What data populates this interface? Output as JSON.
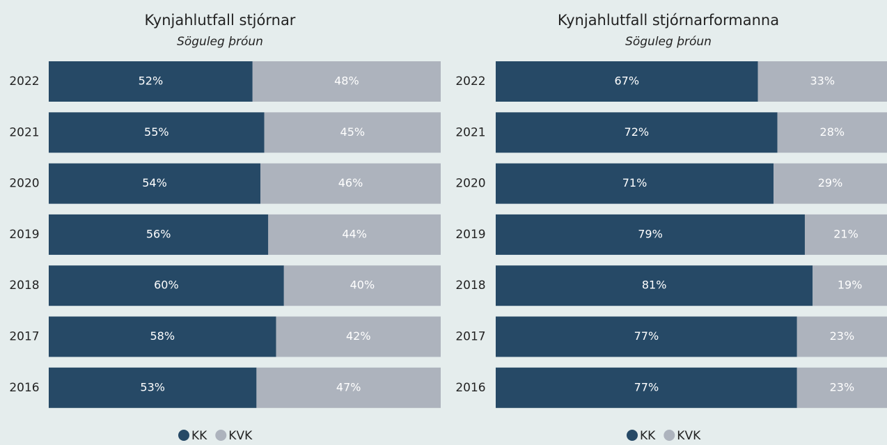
{
  "chart_data": [
    {
      "type": "stacked-bar-horizontal",
      "title": "Kynjahlutfall stjórnar",
      "subtitle": "Söguleg þróun",
      "categories": [
        "2022",
        "2021",
        "2020",
        "2019",
        "2018",
        "2017",
        "2016"
      ],
      "xlim": [
        0,
        100
      ],
      "series": [
        {
          "name": "KK",
          "color": "#264966",
          "values": [
            52,
            55,
            54,
            56,
            60,
            58,
            53
          ],
          "value_labels": [
            "52%",
            "55%",
            "54%",
            "56%",
            "60%",
            "58%",
            "53%"
          ]
        },
        {
          "name": "KVK",
          "color": "#adb3bd",
          "values": [
            48,
            45,
            46,
            44,
            40,
            42,
            47
          ],
          "value_labels": [
            "48%",
            "45%",
            "46%",
            "44%",
            "40%",
            "42%",
            "47%"
          ]
        }
      ]
    },
    {
      "type": "stacked-bar-horizontal",
      "title": "Kynjahlutfall stjórnarformanna",
      "subtitle": "Söguleg þróun",
      "categories": [
        "2022",
        "2021",
        "2020",
        "2019",
        "2018",
        "2017",
        "2016"
      ],
      "xlim": [
        0,
        100
      ],
      "series": [
        {
          "name": "KK",
          "color": "#264966",
          "values": [
            67,
            72,
            71,
            79,
            81,
            77,
            77
          ],
          "value_labels": [
            "67%",
            "72%",
            "71%",
            "79%",
            "81%",
            "77%",
            "77%"
          ]
        },
        {
          "name": "KVK",
          "color": "#adb3bd",
          "values": [
            33,
            28,
            29,
            21,
            19,
            23,
            23
          ],
          "value_labels": [
            "33%",
            "28%",
            "29%",
            "21%",
            "19%",
            "23%",
            "23%"
          ]
        }
      ]
    }
  ]
}
